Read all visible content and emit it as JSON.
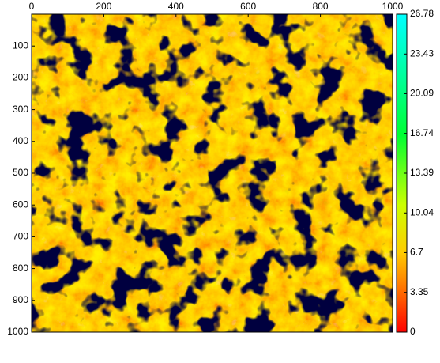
{
  "chart_data": {
    "type": "heatmap",
    "xlim": [
      0,
      1000
    ],
    "xticks": [
      0,
      200,
      400,
      600,
      800,
      1000
    ],
    "ylim": [
      0,
      1000
    ],
    "yticks": [
      100,
      200,
      300,
      400,
      500,
      600,
      700,
      800,
      900,
      1000
    ],
    "y_reversed": true,
    "colorbar": {
      "lim": [
        0,
        26.78
      ],
      "ticks": [
        0,
        3.35,
        6.7,
        10.04,
        13.39,
        16.74,
        20.09,
        23.43,
        26.78
      ]
    }
  }
}
